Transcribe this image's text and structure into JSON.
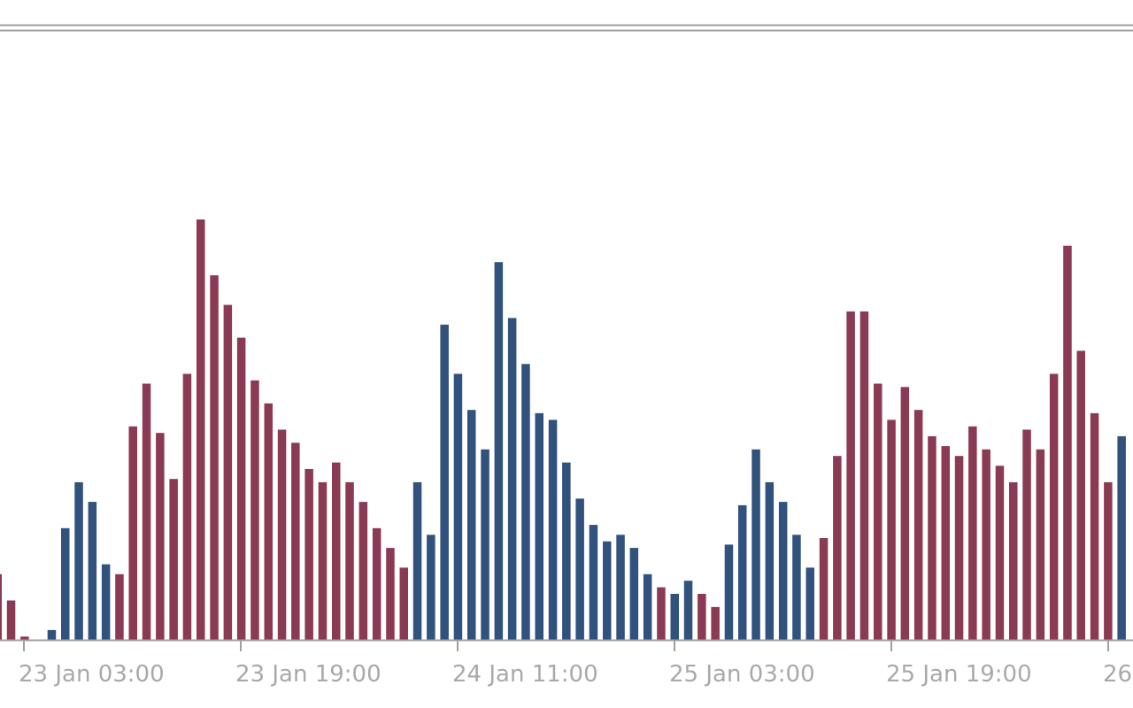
{
  "chart_data": {
    "type": "bar",
    "title": "",
    "xlabel": "",
    "ylabel": "",
    "grid": false,
    "legend": "none",
    "colors": {
      "blue": "#30527c",
      "red": "#8a3a52",
      "axis": "#a0a0a0",
      "tick_text": "#a9a9a9"
    },
    "ylim": [
      0,
      128
    ],
    "x_tick_labels": [
      "23 Jan 03:00",
      "23 Jan 19:00",
      "24 Jan 11:00",
      "25 Jan 03:00",
      "25 Jan 19:00",
      "26"
    ],
    "bars": [
      {
        "v": 20,
        "c": "red"
      },
      {
        "v": 12,
        "c": "red"
      },
      {
        "v": 1,
        "c": "red"
      },
      {
        "v": 0,
        "c": "red"
      },
      {
        "v": 3,
        "c": "blue"
      },
      {
        "v": 34,
        "c": "blue"
      },
      {
        "v": 48,
        "c": "blue"
      },
      {
        "v": 42,
        "c": "blue"
      },
      {
        "v": 23,
        "c": "blue"
      },
      {
        "v": 20,
        "c": "red"
      },
      {
        "v": 65,
        "c": "red"
      },
      {
        "v": 78,
        "c": "red"
      },
      {
        "v": 63,
        "c": "red"
      },
      {
        "v": 49,
        "c": "red"
      },
      {
        "v": 81,
        "c": "red"
      },
      {
        "v": 128,
        "c": "red"
      },
      {
        "v": 111,
        "c": "red"
      },
      {
        "v": 102,
        "c": "red"
      },
      {
        "v": 92,
        "c": "red"
      },
      {
        "v": 79,
        "c": "red"
      },
      {
        "v": 72,
        "c": "red"
      },
      {
        "v": 64,
        "c": "red"
      },
      {
        "v": 60,
        "c": "red"
      },
      {
        "v": 52,
        "c": "red"
      },
      {
        "v": 48,
        "c": "red"
      },
      {
        "v": 54,
        "c": "red"
      },
      {
        "v": 48,
        "c": "red"
      },
      {
        "v": 42,
        "c": "red"
      },
      {
        "v": 34,
        "c": "red"
      },
      {
        "v": 28,
        "c": "red"
      },
      {
        "v": 22,
        "c": "red"
      },
      {
        "v": 48,
        "c": "blue"
      },
      {
        "v": 32,
        "c": "blue"
      },
      {
        "v": 96,
        "c": "blue"
      },
      {
        "v": 81,
        "c": "blue"
      },
      {
        "v": 70,
        "c": "blue"
      },
      {
        "v": 58,
        "c": "blue"
      },
      {
        "v": 115,
        "c": "blue"
      },
      {
        "v": 98,
        "c": "blue"
      },
      {
        "v": 84,
        "c": "blue"
      },
      {
        "v": 69,
        "c": "blue"
      },
      {
        "v": 67,
        "c": "blue"
      },
      {
        "v": 54,
        "c": "blue"
      },
      {
        "v": 43,
        "c": "blue"
      },
      {
        "v": 35,
        "c": "blue"
      },
      {
        "v": 30,
        "c": "blue"
      },
      {
        "v": 32,
        "c": "blue"
      },
      {
        "v": 28,
        "c": "blue"
      },
      {
        "v": 20,
        "c": "blue"
      },
      {
        "v": 16,
        "c": "red"
      },
      {
        "v": 14,
        "c": "blue"
      },
      {
        "v": 18,
        "c": "blue"
      },
      {
        "v": 14,
        "c": "red"
      },
      {
        "v": 10,
        "c": "red"
      },
      {
        "v": 29,
        "c": "blue"
      },
      {
        "v": 41,
        "c": "blue"
      },
      {
        "v": 58,
        "c": "blue"
      },
      {
        "v": 48,
        "c": "blue"
      },
      {
        "v": 42,
        "c": "blue"
      },
      {
        "v": 32,
        "c": "blue"
      },
      {
        "v": 22,
        "c": "blue"
      },
      {
        "v": 31,
        "c": "red"
      },
      {
        "v": 56,
        "c": "red"
      },
      {
        "v": 100,
        "c": "red"
      },
      {
        "v": 100,
        "c": "red"
      },
      {
        "v": 78,
        "c": "red"
      },
      {
        "v": 67,
        "c": "red"
      },
      {
        "v": 77,
        "c": "red"
      },
      {
        "v": 70,
        "c": "red"
      },
      {
        "v": 62,
        "c": "red"
      },
      {
        "v": 59,
        "c": "red"
      },
      {
        "v": 56,
        "c": "red"
      },
      {
        "v": 65,
        "c": "red"
      },
      {
        "v": 58,
        "c": "red"
      },
      {
        "v": 53,
        "c": "red"
      },
      {
        "v": 48,
        "c": "red"
      },
      {
        "v": 64,
        "c": "red"
      },
      {
        "v": 58,
        "c": "red"
      },
      {
        "v": 81,
        "c": "red"
      },
      {
        "v": 120,
        "c": "red"
      },
      {
        "v": 88,
        "c": "red"
      },
      {
        "v": 69,
        "c": "red"
      },
      {
        "v": 48,
        "c": "red"
      },
      {
        "v": 62,
        "c": "blue"
      }
    ]
  }
}
